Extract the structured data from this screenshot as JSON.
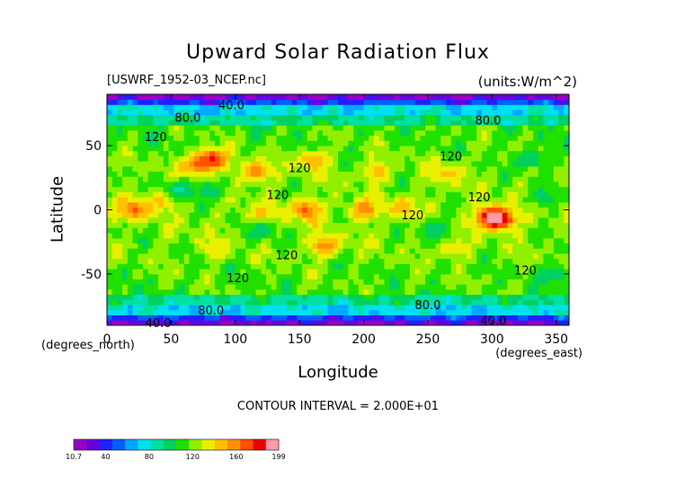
{
  "chart_data": {
    "type": "heatmap",
    "title": "Upward Solar Radiation Flux",
    "file_label": "[USWRF_1952-03_NCEP.nc]",
    "units_label": "(units:W/m^2)",
    "xlabel": "Longitude",
    "ylabel": "Latitude",
    "x_unit_note": "(degrees_east)",
    "y_unit_note": "(degrees_north)",
    "xlim": [
      0,
      360
    ],
    "ylim": [
      -90,
      90
    ],
    "x_ticks": [
      0,
      50,
      100,
      150,
      200,
      250,
      300,
      350
    ],
    "y_ticks": [
      -50,
      0,
      50
    ],
    "contour_interval_text": "CONTOUR INTERVAL = 2.000E+01",
    "contour_labels": [
      {
        "text": "40.0",
        "lon": 97,
        "lat": 82
      },
      {
        "text": "80.0",
        "lon": 63,
        "lat": 72
      },
      {
        "text": "80.0",
        "lon": 297,
        "lat": 70
      },
      {
        "text": "120",
        "lon": 38,
        "lat": 57
      },
      {
        "text": "120",
        "lon": 268,
        "lat": 42
      },
      {
        "text": "120",
        "lon": 150,
        "lat": 33
      },
      {
        "text": "120",
        "lon": 133,
        "lat": 12
      },
      {
        "text": "120",
        "lon": 290,
        "lat": 10
      },
      {
        "text": "120",
        "lon": 238,
        "lat": -4
      },
      {
        "text": "120",
        "lon": 140,
        "lat": -35
      },
      {
        "text": "120",
        "lon": 102,
        "lat": -53
      },
      {
        "text": "120",
        "lon": 326,
        "lat": -47
      },
      {
        "text": "80.0",
        "lon": 250,
        "lat": -74
      },
      {
        "text": "80.0",
        "lon": 81,
        "lat": -78
      },
      {
        "text": "40.0",
        "lon": 40,
        "lat": -88
      },
      {
        "text": "40.0",
        "lon": 301,
        "lat": -86
      }
    ],
    "colorbar": {
      "min_label": "10.7",
      "max_label": "199",
      "tick_labels": [
        "40",
        "80",
        "120",
        "160"
      ],
      "tick_values": [
        40,
        80,
        120,
        160
      ],
      "min": 10.7,
      "max": 199,
      "colors": [
        "#9a00c8",
        "#6a00e0",
        "#2020ff",
        "#0060ff",
        "#00a8ff",
        "#00e0f0",
        "#00e0a0",
        "#00d060",
        "#20e000",
        "#90f000",
        "#e8f000",
        "#ffc000",
        "#ff9000",
        "#ff5000",
        "#ee0000",
        "#ff9aa8"
      ]
    },
    "regions": [
      {
        "lon": 22,
        "lat": 0,
        "value": 165
      },
      {
        "lon": 45,
        "lat": 10,
        "value": 160
      },
      {
        "lon": 70,
        "lat": 35,
        "value": 160
      },
      {
        "lon": 82,
        "lat": 40,
        "value": 180
      },
      {
        "lon": 115,
        "lat": 30,
        "value": 160
      },
      {
        "lon": 160,
        "lat": 38,
        "value": 150
      },
      {
        "lon": 155,
        "lat": 0,
        "value": 165
      },
      {
        "lon": 200,
        "lat": 0,
        "value": 160
      },
      {
        "lon": 230,
        "lat": 2,
        "value": 150
      },
      {
        "lon": 120,
        "lat": -5,
        "value": 150
      },
      {
        "lon": 170,
        "lat": -28,
        "value": 160
      },
      {
        "lon": 210,
        "lat": 30,
        "value": 145
      },
      {
        "lon": 300,
        "lat": -5,
        "value": 180
      },
      {
        "lon": 305,
        "lat": -7,
        "value": 195
      },
      {
        "lon": 265,
        "lat": 28,
        "value": 145
      },
      {
        "lon": 270,
        "lat": -30,
        "value": 140
      },
      {
        "lon": 85,
        "lat": -30,
        "value": 140
      },
      {
        "lon": 55,
        "lat": 15,
        "value": 90
      },
      {
        "lon": 80,
        "lat": 15,
        "value": 95
      },
      {
        "lon": 120,
        "lat": -15,
        "value": 95
      },
      {
        "lon": 330,
        "lat": 40,
        "value": 95
      },
      {
        "lon": 340,
        "lat": 10,
        "value": 100
      },
      {
        "lon": 255,
        "lat": -15,
        "value": 95
      },
      {
        "lon": 350,
        "lat": -50,
        "value": 100
      }
    ]
  }
}
